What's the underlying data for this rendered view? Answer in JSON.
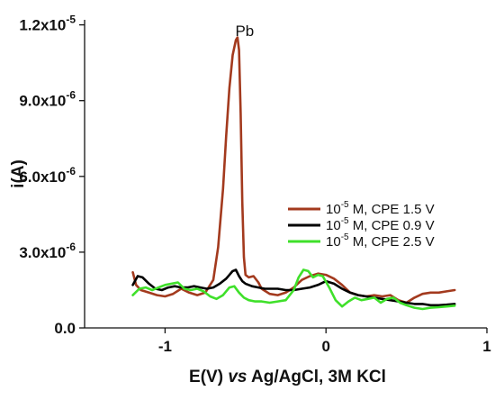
{
  "chart_data": {
    "type": "line",
    "ylabel": "i(A)",
    "xlabel_parts": [
      "E(V) ",
      "vs",
      " Ag/AgCl, 3M KCl"
    ],
    "xlim": [
      -1.5,
      1.0
    ],
    "ylim": [
      0,
      1.22e-05
    ],
    "x_ticks": [
      {
        "value": -1,
        "label": "-1"
      },
      {
        "value": 0,
        "label": "0"
      },
      {
        "value": 1,
        "label": "1"
      }
    ],
    "y_ticks": [
      {
        "value": 0,
        "label": "0.0",
        "exp": ""
      },
      {
        "value": 3e-06,
        "label": "3.0x10",
        "exp": "-6"
      },
      {
        "value": 6e-06,
        "label": "6.0x10",
        "exp": "-6"
      },
      {
        "value": 9e-06,
        "label": "9.0x10",
        "exp": "-6"
      },
      {
        "value": 1.2e-05,
        "label": "1.2x10",
        "exp": "-5"
      }
    ],
    "annotations": [
      {
        "text": "Pb",
        "x": -0.55,
        "y": 1.17e-05
      }
    ],
    "legend_position": "right",
    "series": [
      {
        "name": "10⁻⁵ M, CPE 1.5 V",
        "legend": {
          "pre": "10",
          "sup": "-5",
          "post": " M, CPE 1.5 V"
        },
        "color": "#a33a1e",
        "x": [
          -1.2,
          -1.18,
          -1.15,
          -1.1,
          -1.05,
          -1.0,
          -0.95,
          -0.9,
          -0.85,
          -0.8,
          -0.75,
          -0.7,
          -0.67,
          -0.64,
          -0.62,
          -0.6,
          -0.58,
          -0.56,
          -0.55,
          -0.54,
          -0.53,
          -0.52,
          -0.51,
          -0.5,
          -0.48,
          -0.45,
          -0.42,
          -0.4,
          -0.35,
          -0.3,
          -0.25,
          -0.2,
          -0.15,
          -0.1,
          -0.05,
          0.0,
          0.05,
          0.1,
          0.15,
          0.2,
          0.25,
          0.3,
          0.35,
          0.4,
          0.45,
          0.5,
          0.55,
          0.6,
          0.65,
          0.7,
          0.75,
          0.8
        ],
        "y": [
          2.2e-06,
          1.7e-06,
          1.5e-06,
          1.4e-06,
          1.3e-06,
          1.25e-06,
          1.35e-06,
          1.55e-06,
          1.4e-06,
          1.3e-06,
          1.4e-06,
          1.9e-06,
          3.2e-06,
          5.5e-06,
          7.6e-06,
          9.5e-06,
          1.08e-05,
          1.14e-05,
          1.15e-05,
          1.1e-05,
          8.5e-06,
          5e-06,
          2.8e-06,
          2.1e-06,
          2e-06,
          2.05e-06,
          1.8e-06,
          1.55e-06,
          1.35e-06,
          1.3e-06,
          1.4e-06,
          1.6e-06,
          1.9e-06,
          2.05e-06,
          2.15e-06,
          2.1e-06,
          1.95e-06,
          1.7e-06,
          1.4e-06,
          1.3e-06,
          1.25e-06,
          1.3e-06,
          1.25e-06,
          1.3e-06,
          1.1e-06,
          1e-06,
          1.2e-06,
          1.35e-06,
          1.4e-06,
          1.4e-06,
          1.45e-06,
          1.5e-06
        ]
      },
      {
        "name": "10⁻⁵ M, CPE 0.9 V",
        "legend": {
          "pre": "10",
          "sup": "-5",
          "post": " M, CPE 0.9 V"
        },
        "color": "#000000",
        "x": [
          -1.2,
          -1.17,
          -1.14,
          -1.1,
          -1.06,
          -1.02,
          -0.98,
          -0.94,
          -0.9,
          -0.86,
          -0.82,
          -0.78,
          -0.74,
          -0.7,
          -0.66,
          -0.62,
          -0.58,
          -0.56,
          -0.54,
          -0.52,
          -0.5,
          -0.46,
          -0.42,
          -0.38,
          -0.34,
          -0.3,
          -0.25,
          -0.2,
          -0.15,
          -0.1,
          -0.05,
          0.0,
          0.05,
          0.1,
          0.15,
          0.2,
          0.25,
          0.3,
          0.35,
          0.4,
          0.45,
          0.5,
          0.55,
          0.6,
          0.65,
          0.7,
          0.75,
          0.8
        ],
        "y": [
          1.7e-06,
          2.05e-06,
          2e-06,
          1.75e-06,
          1.55e-06,
          1.5e-06,
          1.6e-06,
          1.65e-06,
          1.6e-06,
          1.6e-06,
          1.65e-06,
          1.6e-06,
          1.55e-06,
          1.6e-06,
          1.75e-06,
          1.95e-06,
          2.25e-06,
          2.3e-06,
          2.05e-06,
          1.85e-06,
          1.75e-06,
          1.65e-06,
          1.6e-06,
          1.55e-06,
          1.55e-06,
          1.55e-06,
          1.5e-06,
          1.5e-06,
          1.55e-06,
          1.6e-06,
          1.7e-06,
          1.85e-06,
          1.75e-06,
          1.55e-06,
          1.4e-06,
          1.3e-06,
          1.25e-06,
          1.2e-06,
          1.15e-06,
          1.1e-06,
          1.05e-06,
          1e-06,
          9.5e-07,
          9.5e-07,
          9e-07,
          9e-07,
          9.2e-07,
          9.5e-07
        ]
      },
      {
        "name": "10⁻⁵ M, CPE 2.5 V",
        "legend": {
          "pre": "10",
          "sup": "-5",
          "post": " M, CPE 2.5 V"
        },
        "color": "#3fe02a",
        "x": [
          -1.2,
          -1.16,
          -1.12,
          -1.08,
          -1.04,
          -1.0,
          -0.96,
          -0.92,
          -0.88,
          -0.84,
          -0.8,
          -0.76,
          -0.72,
          -0.68,
          -0.64,
          -0.6,
          -0.57,
          -0.54,
          -0.51,
          -0.48,
          -0.44,
          -0.4,
          -0.35,
          -0.3,
          -0.25,
          -0.2,
          -0.17,
          -0.14,
          -0.11,
          -0.08,
          -0.05,
          -0.02,
          0.02,
          0.06,
          0.1,
          0.14,
          0.18,
          0.22,
          0.26,
          0.3,
          0.34,
          0.38,
          0.42,
          0.46,
          0.5,
          0.55,
          0.6,
          0.65,
          0.7,
          0.75,
          0.8
        ],
        "y": [
          1.3e-06,
          1.55e-06,
          1.6e-06,
          1.5e-06,
          1.6e-06,
          1.7e-06,
          1.75e-06,
          1.8e-06,
          1.55e-06,
          1.5e-06,
          1.55e-06,
          1.45e-06,
          1.25e-06,
          1.15e-06,
          1.3e-06,
          1.6e-06,
          1.65e-06,
          1.4e-06,
          1.2e-06,
          1.1e-06,
          1.05e-06,
          1.05e-06,
          1e-06,
          1.05e-06,
          1.1e-06,
          1.5e-06,
          2e-06,
          2.3e-06,
          2.25e-06,
          2e-06,
          2.1e-06,
          2.05e-06,
          1.6e-06,
          1.1e-06,
          8.5e-07,
          1.05e-06,
          1.2e-06,
          1.1e-06,
          1.15e-06,
          1.2e-06,
          1e-06,
          1.15e-06,
          1.2e-06,
          1e-06,
          9e-07,
          8e-07,
          7.5e-07,
          8e-07,
          8.2e-07,
          8.5e-07,
          8.8e-07
        ]
      }
    ]
  }
}
